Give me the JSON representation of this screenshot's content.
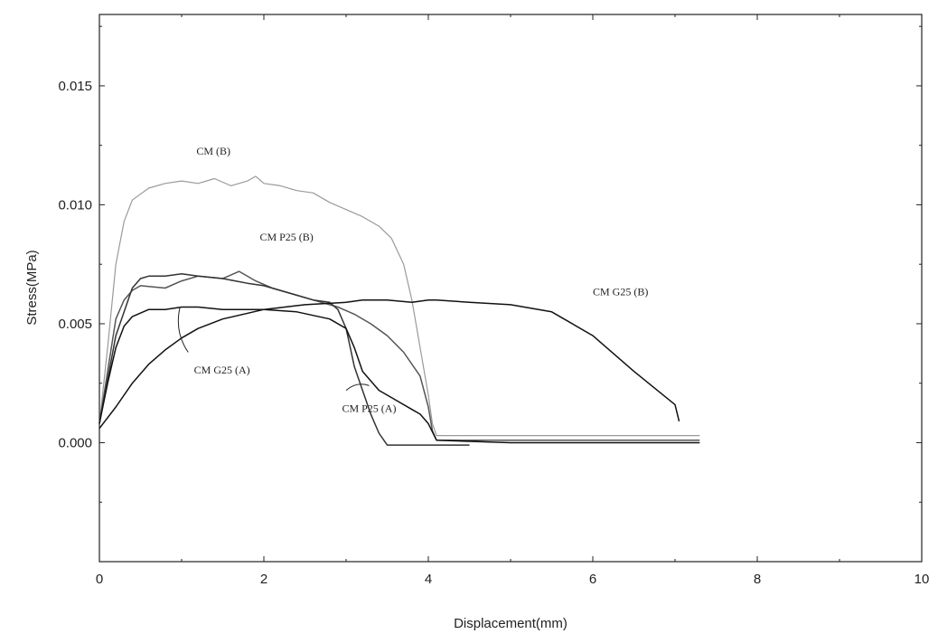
{
  "chart_data": {
    "type": "line",
    "xlabel": "Displacement(mm)",
    "ylabel": "Stress(MPa)",
    "xlim": [
      0,
      10
    ],
    "ylim": [
      -0.005,
      0.018
    ],
    "x_ticks": [
      0,
      2,
      4,
      6,
      8,
      10
    ],
    "y_ticks": [
      0.0,
      0.005,
      0.01,
      0.015
    ],
    "x_tick_labels": [
      "0",
      "2",
      "4",
      "6",
      "8",
      "10"
    ],
    "y_tick_labels": [
      "0.000",
      "0.005",
      "0.010",
      "0.015"
    ],
    "grid": false,
    "series": [
      {
        "color": "#9a9a9a",
        "x": [
          0,
          0.1,
          0.2,
          0.3,
          0.4,
          0.6,
          0.8,
          1.0,
          1.2,
          1.4,
          1.6,
          1.8,
          1.9,
          2.0,
          2.2,
          2.4,
          2.6,
          2.8,
          3.0,
          3.2,
          3.4,
          3.55,
          3.7,
          3.8,
          3.9,
          4.0,
          4.05,
          4.1,
          5.0,
          6.0,
          7.3
        ],
        "y": [
          0.0008,
          0.004,
          0.0075,
          0.0093,
          0.0102,
          0.0107,
          0.0109,
          0.011,
          0.0109,
          0.0111,
          0.0108,
          0.011,
          0.0112,
          0.0109,
          0.0108,
          0.0106,
          0.0105,
          0.0101,
          0.0098,
          0.0095,
          0.0091,
          0.0086,
          0.0075,
          0.006,
          0.004,
          0.002,
          0.0008,
          0.0003,
          0.0003,
          0.0003,
          0.0003
        ]
      },
      {
        "color": "#555555",
        "x": [
          0,
          0.1,
          0.2,
          0.3,
          0.4,
          0.5,
          0.8,
          1.0,
          1.2,
          1.5,
          1.7,
          1.9,
          2.1,
          2.3,
          2.6,
          2.9,
          3.1,
          3.3,
          3.5,
          3.7,
          3.9,
          4.0,
          4.05,
          4.1,
          5.0,
          6.0,
          7.3
        ],
        "y": [
          0.0008,
          0.003,
          0.0052,
          0.006,
          0.0064,
          0.0066,
          0.0065,
          0.0068,
          0.007,
          0.0069,
          0.0072,
          0.0068,
          0.0065,
          0.0063,
          0.006,
          0.0057,
          0.0054,
          0.005,
          0.0045,
          0.0038,
          0.0028,
          0.0015,
          0.0005,
          0.0001,
          0.0001,
          0.0001,
          0.0001
        ]
      },
      {
        "color": "#333333",
        "x": [
          0,
          0.2,
          0.4,
          0.5,
          0.6,
          0.8,
          1.0,
          1.2,
          1.5,
          1.8,
          2.0,
          2.2,
          2.4,
          2.6,
          2.8,
          2.9,
          3.0,
          3.05,
          3.1,
          3.2,
          3.3,
          3.4,
          3.5,
          3.6,
          4.5
        ],
        "y": [
          0.0008,
          0.0045,
          0.0065,
          0.0069,
          0.007,
          0.007,
          0.0071,
          0.007,
          0.0069,
          0.0067,
          0.0066,
          0.0064,
          0.0062,
          0.006,
          0.0059,
          0.0056,
          0.0048,
          0.004,
          0.0032,
          0.0022,
          0.0012,
          0.0004,
          -0.0001,
          -0.0001,
          -0.0001
        ]
      },
      {
        "color": "#111111",
        "x": [
          0,
          0.2,
          0.4,
          0.6,
          0.8,
          1.0,
          1.2,
          1.5,
          2.0,
          2.5,
          3.0,
          3.2,
          3.5,
          3.8,
          4.0,
          4.1,
          4.5,
          5.0,
          5.5,
          6.0,
          6.5,
          7.0,
          7.05
        ],
        "y": [
          0.0006,
          0.0015,
          0.0025,
          0.0033,
          0.0039,
          0.0044,
          0.0048,
          0.0052,
          0.0056,
          0.0058,
          0.0059,
          0.006,
          0.006,
          0.0059,
          0.006,
          0.006,
          0.0059,
          0.0058,
          0.0055,
          0.0045,
          0.003,
          0.0016,
          0.0009
        ]
      },
      {
        "color": "#111111",
        "x": [
          0,
          0.1,
          0.2,
          0.3,
          0.4,
          0.6,
          0.8,
          1.0,
          1.2,
          1.5,
          2.0,
          2.4,
          2.8,
          3.0,
          3.1,
          3.2,
          3.3,
          3.4,
          3.6,
          3.8,
          3.9,
          4.0,
          4.1,
          5.0,
          6.0,
          7.3
        ],
        "y": [
          0.0008,
          0.0025,
          0.004,
          0.0049,
          0.0053,
          0.0056,
          0.0056,
          0.0057,
          0.0057,
          0.0056,
          0.0056,
          0.0055,
          0.0052,
          0.0048,
          0.004,
          0.003,
          0.0026,
          0.0022,
          0.0018,
          0.0014,
          0.0012,
          0.0008,
          0.0001,
          0.0,
          0.0,
          0.0
        ]
      }
    ],
    "annotations": [
      {
        "text": "CM (B)",
        "x": 1.18,
        "y": 0.0121
      },
      {
        "text": "CM P25 (B)",
        "x": 1.95,
        "y": 0.0085
      },
      {
        "text": "CM G25 (B)",
        "x": 6.0,
        "y": 0.0062
      },
      {
        "text": "CM G25 (A)",
        "x": 1.15,
        "y": 0.0029
      },
      {
        "text": "CM P25 (A)",
        "x": 2.95,
        "y": 0.0013
      }
    ]
  }
}
